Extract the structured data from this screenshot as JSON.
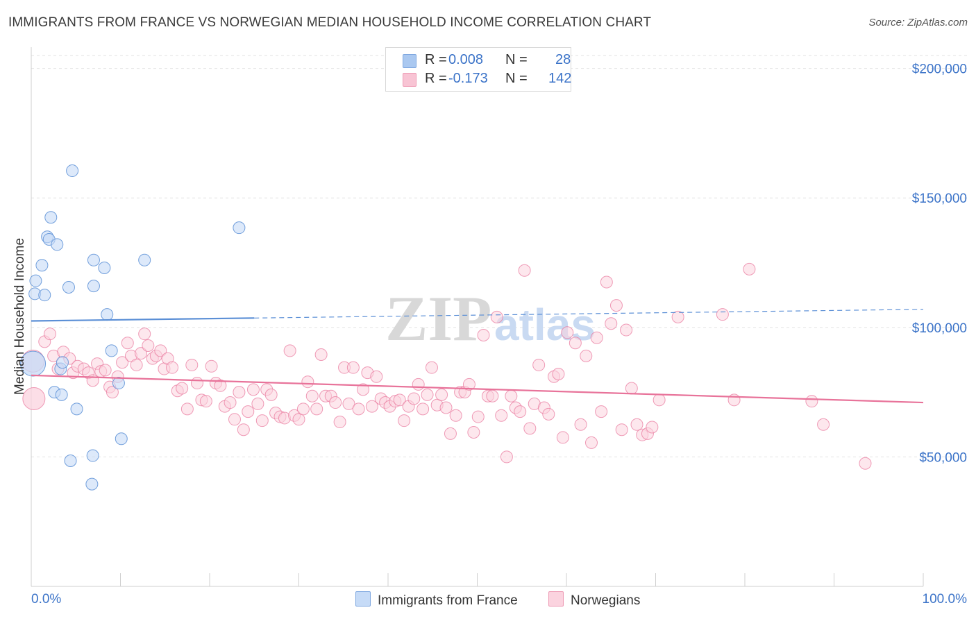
{
  "title": "IMMIGRANTS FROM FRANCE VS NORWEGIAN MEDIAN HOUSEHOLD INCOME CORRELATION CHART",
  "source": "Source: ZipAtlas.com",
  "watermark": {
    "zip": "ZIP",
    "atlas": "atlas"
  },
  "stats": [
    {
      "r_label": "R =",
      "r_value": "0.008",
      "n_label": "N =",
      "n_value": "28",
      "color": "#aac8f0",
      "border": "#7fa8e0"
    },
    {
      "r_label": "R =",
      "r_value": "-0.173",
      "n_label": "N =",
      "n_value": "142",
      "color": "#f8c4d4",
      "border": "#ee9ab4"
    }
  ],
  "legend": [
    {
      "label": "Immigrants from France",
      "color": "#c6dbf7",
      "border": "#7fa8e0"
    },
    {
      "label": "Norwegians",
      "color": "#fbd3df",
      "border": "#ee9ab4"
    }
  ],
  "chart_data": {
    "type": "scatter",
    "title": "IMMIGRANTS FROM FRANCE VS NORWEGIAN MEDIAN HOUSEHOLD INCOME CORRELATION CHART",
    "xlabel": "",
    "ylabel": "Median Household Income",
    "xlim": [
      0,
      100
    ],
    "ylim": [
      0,
      205000
    ],
    "x_tick_labels": [
      "0.0%",
      "100.0%"
    ],
    "y_ticks": [
      50000,
      100000,
      150000,
      200000
    ],
    "y_tick_labels": [
      "$50,000",
      "$100,000",
      "$150,000",
      "$200,000"
    ],
    "grid": true,
    "series": [
      {
        "name": "Immigrants from France",
        "color": "#5b8fd6",
        "fill": "#c6dbf7",
        "points": [
          [
            0.2,
            86000
          ],
          [
            0.5,
            118000
          ],
          [
            0.4,
            113000
          ],
          [
            1.2,
            124000
          ],
          [
            1.5,
            112500
          ],
          [
            1.8,
            135000
          ],
          [
            2.0,
            134000
          ],
          [
            2.2,
            142500
          ],
          [
            2.9,
            132000
          ],
          [
            3.3,
            84000
          ],
          [
            3.5,
            86500
          ],
          [
            2.6,
            75000
          ],
          [
            3.4,
            74000
          ],
          [
            4.2,
            115500
          ],
          [
            4.6,
            160500
          ],
          [
            5.1,
            68500
          ],
          [
            4.4,
            48500
          ],
          [
            7.0,
            116000
          ],
          [
            7.0,
            126000
          ],
          [
            8.2,
            123000
          ],
          [
            8.5,
            105000
          ],
          [
            9.8,
            78500
          ],
          [
            10.1,
            57000
          ],
          [
            9.0,
            91000
          ],
          [
            6.9,
            50500
          ],
          [
            6.8,
            39500
          ],
          [
            12.7,
            126000
          ],
          [
            23.3,
            138500
          ]
        ],
        "trend": {
          "x": [
            0,
            100
          ],
          "y": [
            102500,
            107000
          ],
          "solid_until": 25
        }
      },
      {
        "name": "Norwegians",
        "color": "#e8739a",
        "fill": "#fbd3df",
        "points": [
          [
            0.2,
            87000
          ],
          [
            0.3,
            72500
          ],
          [
            1.5,
            94500
          ],
          [
            2.1,
            97500
          ],
          [
            2.5,
            89000
          ],
          [
            3.0,
            84000
          ],
          [
            3.6,
            90500
          ],
          [
            4.3,
            88000
          ],
          [
            4.7,
            82500
          ],
          [
            5.2,
            85000
          ],
          [
            5.9,
            84000
          ],
          [
            6.4,
            82500
          ],
          [
            6.9,
            79500
          ],
          [
            7.4,
            86000
          ],
          [
            7.8,
            83000
          ],
          [
            8.3,
            83500
          ],
          [
            8.8,
            77000
          ],
          [
            9.1,
            75000
          ],
          [
            9.7,
            81000
          ],
          [
            10.2,
            86500
          ],
          [
            10.8,
            94000
          ],
          [
            11.2,
            89000
          ],
          [
            11.8,
            85500
          ],
          [
            12.3,
            90000
          ],
          [
            12.7,
            97500
          ],
          [
            13.1,
            93000
          ],
          [
            13.6,
            88000
          ],
          [
            14.0,
            89000
          ],
          [
            14.5,
            91000
          ],
          [
            14.9,
            84000
          ],
          [
            15.3,
            88000
          ],
          [
            15.8,
            84500
          ],
          [
            16.4,
            75500
          ],
          [
            16.9,
            76500
          ],
          [
            17.5,
            68500
          ],
          [
            18.0,
            85500
          ],
          [
            18.6,
            78500
          ],
          [
            19.1,
            72000
          ],
          [
            19.6,
            71500
          ],
          [
            20.2,
            85000
          ],
          [
            20.7,
            78500
          ],
          [
            21.2,
            77500
          ],
          [
            21.7,
            69500
          ],
          [
            22.3,
            71000
          ],
          [
            22.8,
            64500
          ],
          [
            23.3,
            75000
          ],
          [
            23.8,
            60500
          ],
          [
            24.3,
            67500
          ],
          [
            24.9,
            76000
          ],
          [
            25.4,
            70500
          ],
          [
            25.9,
            64000
          ],
          [
            26.4,
            76000
          ],
          [
            26.9,
            74000
          ],
          [
            27.4,
            67000
          ],
          [
            27.9,
            65500
          ],
          [
            28.4,
            65000
          ],
          [
            29.0,
            91000
          ],
          [
            29.5,
            66000
          ],
          [
            30.0,
            64500
          ],
          [
            30.5,
            68500
          ],
          [
            31.0,
            79000
          ],
          [
            31.5,
            73500
          ],
          [
            32.0,
            68500
          ],
          [
            32.5,
            89500
          ],
          [
            33.0,
            73500
          ],
          [
            33.6,
            73500
          ],
          [
            34.1,
            71000
          ],
          [
            34.6,
            63500
          ],
          [
            35.1,
            84500
          ],
          [
            35.6,
            70500
          ],
          [
            36.1,
            84500
          ],
          [
            36.7,
            68500
          ],
          [
            37.2,
            76000
          ],
          [
            37.7,
            82500
          ],
          [
            38.2,
            69500
          ],
          [
            38.7,
            81000
          ],
          [
            39.2,
            72500
          ],
          [
            39.7,
            71000
          ],
          [
            40.2,
            69500
          ],
          [
            40.8,
            71500
          ],
          [
            41.3,
            72000
          ],
          [
            41.8,
            64000
          ],
          [
            42.3,
            69500
          ],
          [
            42.9,
            72500
          ],
          [
            43.4,
            78000
          ],
          [
            43.9,
            68500
          ],
          [
            44.4,
            74000
          ],
          [
            44.9,
            84500
          ],
          [
            45.5,
            70000
          ],
          [
            46.0,
            74000
          ],
          [
            46.5,
            69000
          ],
          [
            47.0,
            59000
          ],
          [
            47.6,
            66000
          ],
          [
            48.1,
            75000
          ],
          [
            48.6,
            75000
          ],
          [
            49.1,
            78000
          ],
          [
            49.6,
            59500
          ],
          [
            50.1,
            65500
          ],
          [
            50.7,
            97000
          ],
          [
            51.2,
            73500
          ],
          [
            51.7,
            73500
          ],
          [
            52.2,
            104000
          ],
          [
            52.7,
            66000
          ],
          [
            53.3,
            50000
          ],
          [
            53.8,
            73500
          ],
          [
            54.3,
            69000
          ],
          [
            54.8,
            67500
          ],
          [
            55.3,
            122000
          ],
          [
            55.9,
            61000
          ],
          [
            56.4,
            70500
          ],
          [
            56.9,
            85500
          ],
          [
            57.5,
            69000
          ],
          [
            58.0,
            66500
          ],
          [
            58.6,
            81000
          ],
          [
            59.1,
            82000
          ],
          [
            59.6,
            57500
          ],
          [
            60.1,
            98000
          ],
          [
            61.0,
            94000
          ],
          [
            61.6,
            62500
          ],
          [
            62.2,
            89000
          ],
          [
            62.8,
            55500
          ],
          [
            63.4,
            96000
          ],
          [
            63.9,
            67500
          ],
          [
            64.5,
            117500
          ],
          [
            65.0,
            101500
          ],
          [
            65.6,
            108500
          ],
          [
            66.2,
            60500
          ],
          [
            66.7,
            99000
          ],
          [
            67.3,
            76500
          ],
          [
            67.9,
            62500
          ],
          [
            68.5,
            58500
          ],
          [
            69.1,
            59000
          ],
          [
            69.6,
            61500
          ],
          [
            70.4,
            72000
          ],
          [
            72.5,
            104000
          ],
          [
            77.5,
            105000
          ],
          [
            78.8,
            72000
          ],
          [
            80.5,
            122500
          ],
          [
            87.5,
            71500
          ],
          [
            88.8,
            62500
          ],
          [
            93.5,
            47500
          ]
        ],
        "trend": {
          "x": [
            0,
            100
          ],
          "y": [
            81500,
            71000
          ],
          "solid_until": 100
        }
      }
    ]
  }
}
